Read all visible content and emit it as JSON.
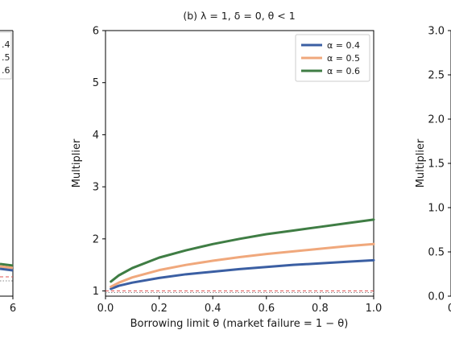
{
  "left_panel": {
    "legend_fragments": [
      ".4",
      ".5",
      ".6"
    ],
    "xtick_partial": "6"
  },
  "chart_data": {
    "type": "line",
    "title": "(b) λ = 1, δ = 0, θ < 1",
    "xlabel": "Borrowing limit θ  (market failure = 1 − θ)",
    "ylabel": "Multiplier",
    "xlim": [
      0.0,
      1.0
    ],
    "ylim": [
      0.9,
      6.0
    ],
    "xticks": [
      "0.0",
      "0.2",
      "0.4",
      "0.6",
      "0.8",
      "1.0"
    ],
    "yticks": [
      "1",
      "2",
      "3",
      "4",
      "5",
      "6"
    ],
    "grid": false,
    "legend_position": "top-right",
    "x": [
      0.02,
      0.05,
      0.1,
      0.2,
      0.3,
      0.4,
      0.5,
      0.6,
      0.7,
      0.8,
      0.9,
      1.0
    ],
    "series": [
      {
        "name": "α = 0.4",
        "color": "#3b5fa3",
        "values": [
          1.04,
          1.1,
          1.16,
          1.25,
          1.32,
          1.37,
          1.42,
          1.46,
          1.5,
          1.53,
          1.56,
          1.59
        ]
      },
      {
        "name": "α = 0.5",
        "color": "#f0a87c",
        "values": [
          1.08,
          1.16,
          1.26,
          1.4,
          1.5,
          1.58,
          1.65,
          1.71,
          1.76,
          1.81,
          1.86,
          1.9
        ]
      },
      {
        "name": "α = 0.6",
        "color": "#3f7d44",
        "values": [
          1.18,
          1.3,
          1.44,
          1.64,
          1.78,
          1.9,
          2.0,
          2.09,
          2.16,
          2.23,
          2.3,
          2.37
        ]
      }
    ],
    "reference_lines": [
      {
        "style": "dashed",
        "color": "#e05555",
        "y": 1.0
      },
      {
        "style": "dotted",
        "color": "#888888",
        "y": 0.97
      }
    ]
  },
  "right_panel": {
    "ylabel": "Multiplier",
    "yticks": [
      "0.0",
      "0.5",
      "1.0",
      "1.5",
      "2.0",
      "2.5",
      "3.0"
    ],
    "xtick_partial": "0"
  }
}
